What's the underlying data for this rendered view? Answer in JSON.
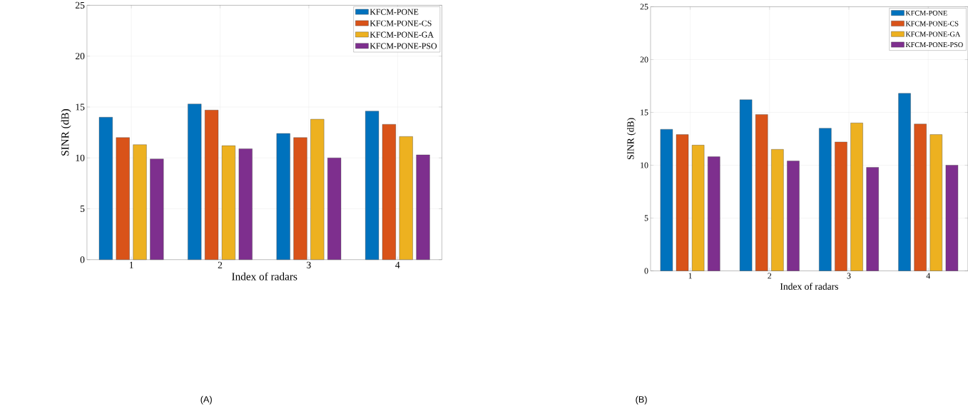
{
  "chart_data": [
    {
      "type": "bar",
      "xlabel": "Index of radars",
      "ylabel": "SINR (dB)",
      "categories": [
        "1",
        "2",
        "3",
        "4"
      ],
      "ylim": [
        0,
        25
      ],
      "yticks": [
        0,
        5,
        10,
        15,
        20,
        25
      ],
      "grid": true,
      "legend": "top right",
      "annotations": [
        "(A)"
      ],
      "series": [
        {
          "name": "KFCM-PONE",
          "color": "#0072bd",
          "values": [
            14.0,
            15.3,
            12.4,
            14.6
          ]
        },
        {
          "name": "KFCM-PONE-CS",
          "color": "#d95319",
          "values": [
            12.0,
            14.7,
            12.0,
            13.3
          ]
        },
        {
          "name": "KFCM-PONE-GA",
          "color": "#edb120",
          "values": [
            11.3,
            11.2,
            13.8,
            12.1
          ]
        },
        {
          "name": "KFCM-PONE-PSO",
          "color": "#7e2f8e",
          "values": [
            9.9,
            10.9,
            10.0,
            10.3
          ]
        }
      ]
    },
    {
      "type": "bar",
      "xlabel": "Index of radars",
      "ylabel": "SINR (dB)",
      "categories": [
        "1",
        "2",
        "3",
        "4"
      ],
      "ylim": [
        0,
        25
      ],
      "yticks": [
        0,
        5,
        10,
        15,
        20,
        25
      ],
      "grid": true,
      "legend": "top right",
      "annotations": [
        "(B)"
      ],
      "series": [
        {
          "name": "KFCM-PONE",
          "color": "#0072bd",
          "values": [
            13.4,
            16.2,
            13.5,
            16.8
          ]
        },
        {
          "name": "KFCM-PONE-CS",
          "color": "#d95319",
          "values": [
            12.9,
            14.8,
            12.2,
            13.9
          ]
        },
        {
          "name": "KFCM-PONE-GA",
          "color": "#edb120",
          "values": [
            11.9,
            11.5,
            14.0,
            12.9
          ]
        },
        {
          "name": "KFCM-PONE-PSO",
          "color": "#7e2f8e",
          "values": [
            10.8,
            10.4,
            9.8,
            10.0
          ]
        }
      ]
    }
  ]
}
